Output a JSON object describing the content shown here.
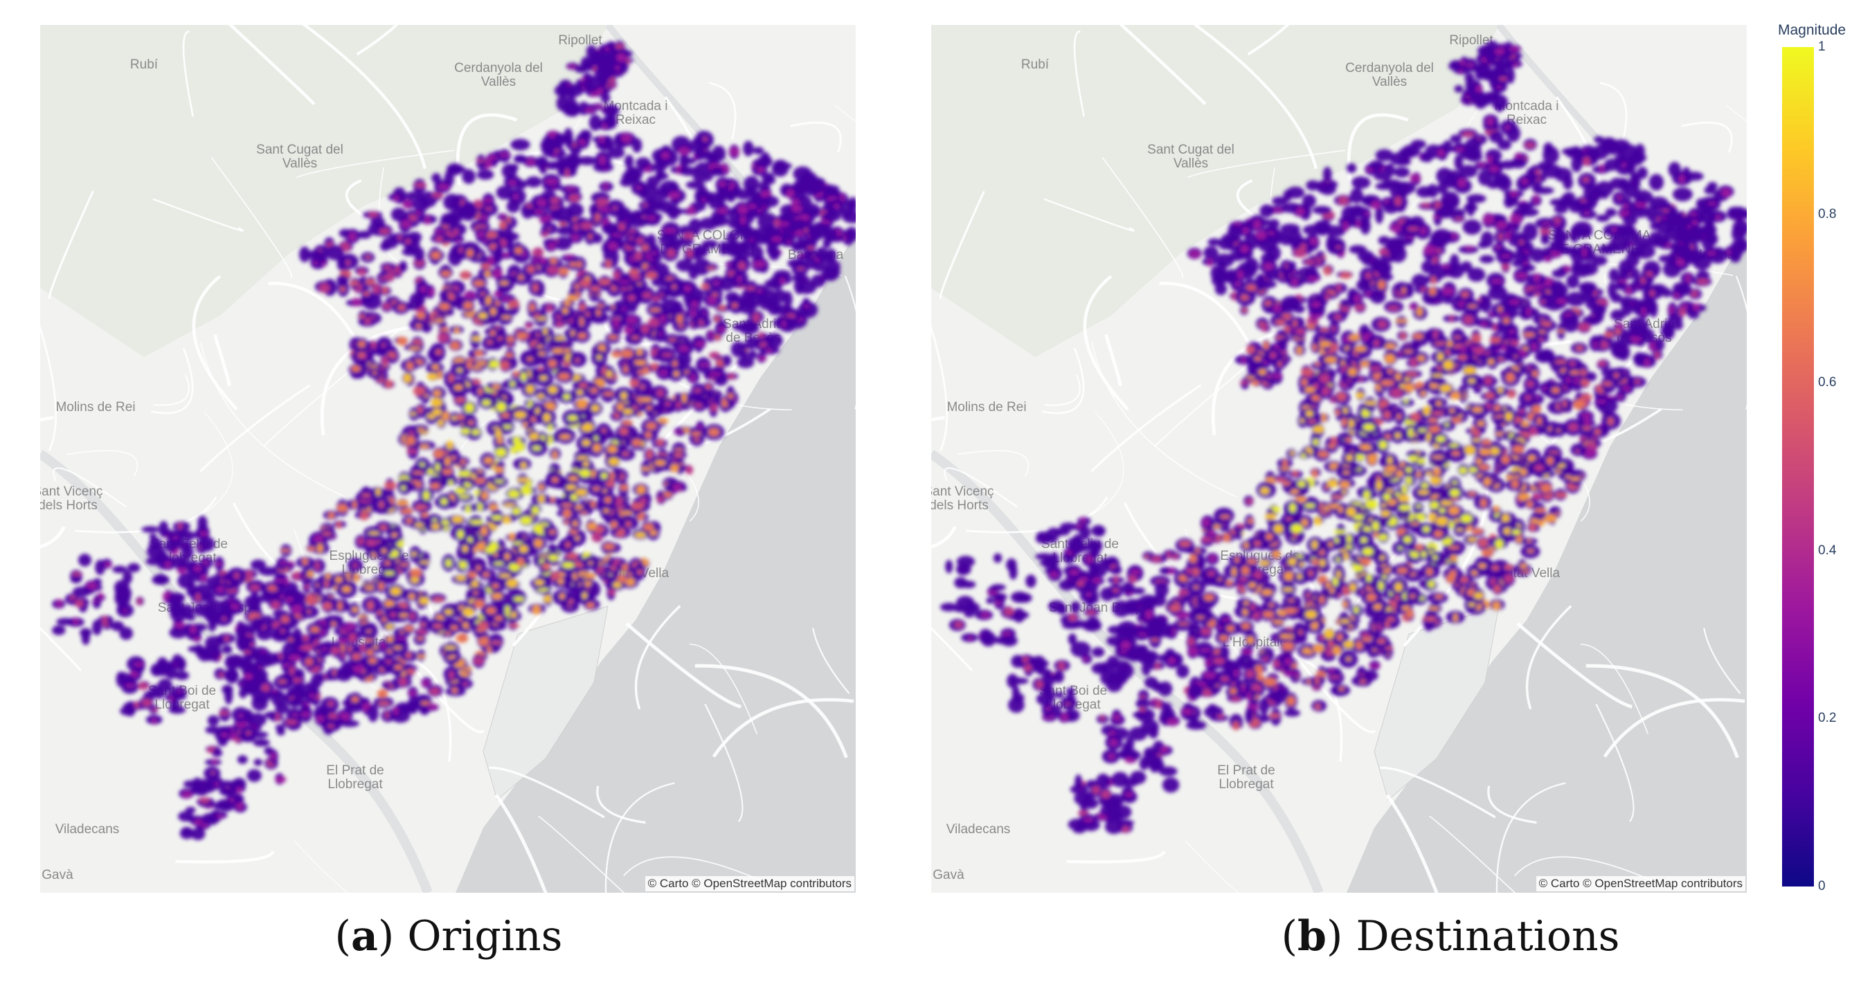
{
  "panels": [
    {
      "tag": "a",
      "caption": "Origins",
      "attribution": "© Carto © OpenStreetMap contributors",
      "seed": 7,
      "hotspot": "origin"
    },
    {
      "tag": "b",
      "caption": "Destinations",
      "attribution": "© Carto © OpenStreetMap contributors",
      "seed": 19,
      "hotspot": "destination"
    }
  ],
  "map_labels": [
    "Ripollet",
    "Rubí",
    "Cerdanyola del Vallès",
    "Montcada i Reixac",
    "Sant Cugat del Vallès",
    "Santa Coloma de Gramenet",
    "Badalona",
    "Sant Adrià de Besòs",
    "Molins de Rei",
    "Sant Vicenç dels Horts",
    "Sant Feliu de Llobregat",
    "Esplugues de Llobregat",
    "Sant Joan Despí",
    "L'Hospitalet",
    "Sant Boi de Llobregat",
    "El Prat de Llobregat",
    "Viladecans",
    "Gavà",
    "Ciutat Vella"
  ],
  "colorbar": {
    "title": "Magnitude",
    "ticks": [
      "1",
      "0.8",
      "0.6",
      "0.4",
      "0.2",
      "0"
    ],
    "colors": [
      "#0d0887",
      "#46039f",
      "#7201a8",
      "#9c179e",
      "#bd3786",
      "#d8576b",
      "#ed7953",
      "#fb9f3a",
      "#fdca26",
      "#f0f921"
    ]
  }
}
